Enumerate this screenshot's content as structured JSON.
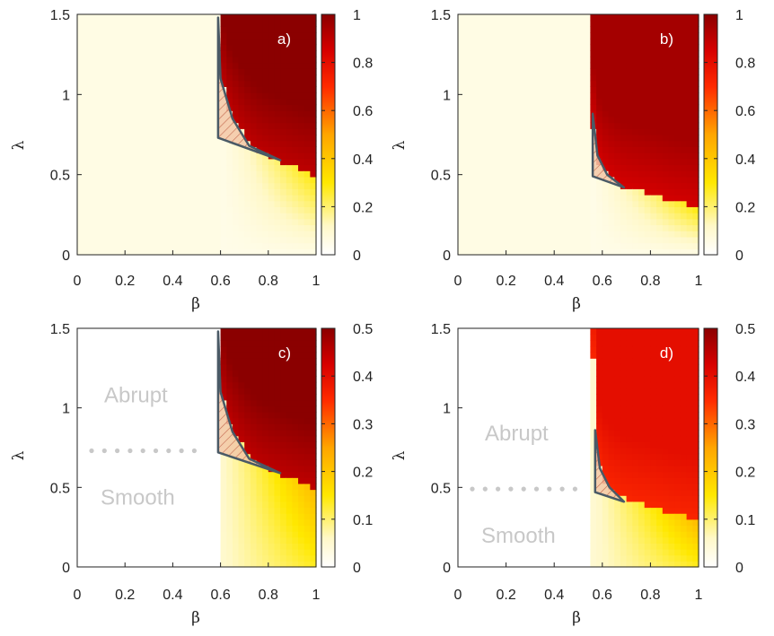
{
  "chart_data": [
    {
      "type": "heatmap",
      "panel_label": "a)",
      "xlabel": "β",
      "ylabel": "λ",
      "xlim": [
        0,
        1
      ],
      "ylim": [
        0,
        1.5
      ],
      "xticks": [
        "0",
        "0.2",
        "0.4",
        "0.6",
        "0.8",
        "1"
      ],
      "yticks": [
        "0",
        "0.5",
        "1",
        "1.5"
      ],
      "colorbar": {
        "range": [
          0,
          1
        ],
        "ticks": [
          "0",
          "0.2",
          "0.4",
          "0.6",
          "0.8",
          "1"
        ]
      },
      "onset_beta": 0.59,
      "boundary": [
        [
          0.59,
          1.5
        ],
        [
          0.6,
          1.1
        ],
        [
          0.64,
          0.9
        ],
        [
          0.7,
          0.75
        ],
        [
          0.75,
          0.66
        ],
        [
          0.82,
          0.6
        ],
        [
          0.9,
          0.55
        ],
        [
          1.0,
          0.5
        ]
      ],
      "hysteresis_region": [
        [
          0.59,
          1.48
        ],
        [
          0.6,
          1.1
        ],
        [
          0.65,
          0.85
        ],
        [
          0.72,
          0.68
        ],
        [
          0.85,
          0.59
        ],
        [
          0.59,
          0.73
        ]
      ],
      "high_value": 1.0,
      "low_value": 0.0,
      "tail_value": 0.1
    },
    {
      "type": "heatmap",
      "panel_label": "b)",
      "xlabel": "β",
      "ylabel": "λ",
      "xlim": [
        0,
        1
      ],
      "ylim": [
        0,
        1.5
      ],
      "xticks": [
        "0",
        "0.2",
        "0.4",
        "0.6",
        "0.8",
        "1"
      ],
      "yticks": [
        "0",
        "0.5",
        "1",
        "1.5"
      ],
      "colorbar": {
        "range": [
          0,
          1
        ],
        "ticks": [
          "0",
          "0.2",
          "0.4",
          "0.6",
          "0.8",
          "1"
        ]
      },
      "onset_beta": 0.55,
      "boundary": [
        [
          0.55,
          1.5
        ],
        [
          0.56,
          0.8
        ],
        [
          0.58,
          0.6
        ],
        [
          0.62,
          0.5
        ],
        [
          0.68,
          0.43
        ],
        [
          0.8,
          0.38
        ],
        [
          0.9,
          0.33
        ],
        [
          1.0,
          0.3
        ]
      ],
      "hysteresis_region": [
        [
          0.56,
          0.88
        ],
        [
          0.58,
          0.62
        ],
        [
          0.62,
          0.5
        ],
        [
          0.69,
          0.42
        ],
        [
          0.56,
          0.49
        ]
      ],
      "high_value": 0.95,
      "low_value": 0.0,
      "tail_value": 0.15
    },
    {
      "type": "heatmap",
      "panel_label": "c)",
      "xlabel": "β",
      "ylabel": "λ",
      "xlim": [
        0,
        1
      ],
      "ylim": [
        0,
        1.5
      ],
      "xticks": [
        "0",
        "0.2",
        "0.4",
        "0.6",
        "0.8",
        "1"
      ],
      "yticks": [
        "0",
        "0.5",
        "1",
        "1.5"
      ],
      "colorbar": {
        "range": [
          0,
          0.5
        ],
        "ticks": [
          "0",
          "0.1",
          "0.2",
          "0.3",
          "0.4",
          "0.5"
        ]
      },
      "onset_beta": 0.59,
      "boundary": [
        [
          0.59,
          1.5
        ],
        [
          0.6,
          1.1
        ],
        [
          0.64,
          0.9
        ],
        [
          0.7,
          0.75
        ],
        [
          0.75,
          0.66
        ],
        [
          0.82,
          0.6
        ],
        [
          0.9,
          0.55
        ],
        [
          1.0,
          0.5
        ]
      ],
      "hysteresis_region": [
        [
          0.59,
          1.48
        ],
        [
          0.6,
          1.1
        ],
        [
          0.65,
          0.85
        ],
        [
          0.72,
          0.68
        ],
        [
          0.85,
          0.59
        ],
        [
          0.59,
          0.72
        ]
      ],
      "high_value": 0.5,
      "low_value": 0.0,
      "tail_value": 0.05,
      "region_labels": {
        "upper": "Abrupt",
        "lower": "Smooth"
      },
      "divider_lambda": 0.73
    },
    {
      "type": "heatmap",
      "panel_label": "d)",
      "xlabel": "β",
      "ylabel": "λ",
      "xlim": [
        0,
        1
      ],
      "ylim": [
        0,
        1.5
      ],
      "xticks": [
        "0",
        "0.2",
        "0.4",
        "0.6",
        "0.8",
        "1"
      ],
      "yticks": [
        "0",
        "0.5",
        "1",
        "1.5"
      ],
      "colorbar": {
        "range": [
          0,
          0.5
        ],
        "ticks": [
          "0",
          "0.1",
          "0.2",
          "0.3",
          "0.4",
          "0.5"
        ]
      },
      "onset_beta": 0.56,
      "boundary": [
        [
          0.56,
          1.5
        ],
        [
          0.57,
          0.8
        ],
        [
          0.59,
          0.6
        ],
        [
          0.63,
          0.5
        ],
        [
          0.69,
          0.43
        ],
        [
          0.8,
          0.38
        ],
        [
          0.9,
          0.33
        ],
        [
          1.0,
          0.3
        ]
      ],
      "hysteresis_region": [
        [
          0.57,
          0.86
        ],
        [
          0.59,
          0.62
        ],
        [
          0.63,
          0.5
        ],
        [
          0.69,
          0.41
        ],
        [
          0.57,
          0.47
        ]
      ],
      "high_value": 0.4,
      "low_value": 0.0,
      "tail_value": 0.05,
      "region_labels": {
        "upper": "Abrupt",
        "lower": "Smooth"
      },
      "divider_lambda": 0.49
    }
  ]
}
